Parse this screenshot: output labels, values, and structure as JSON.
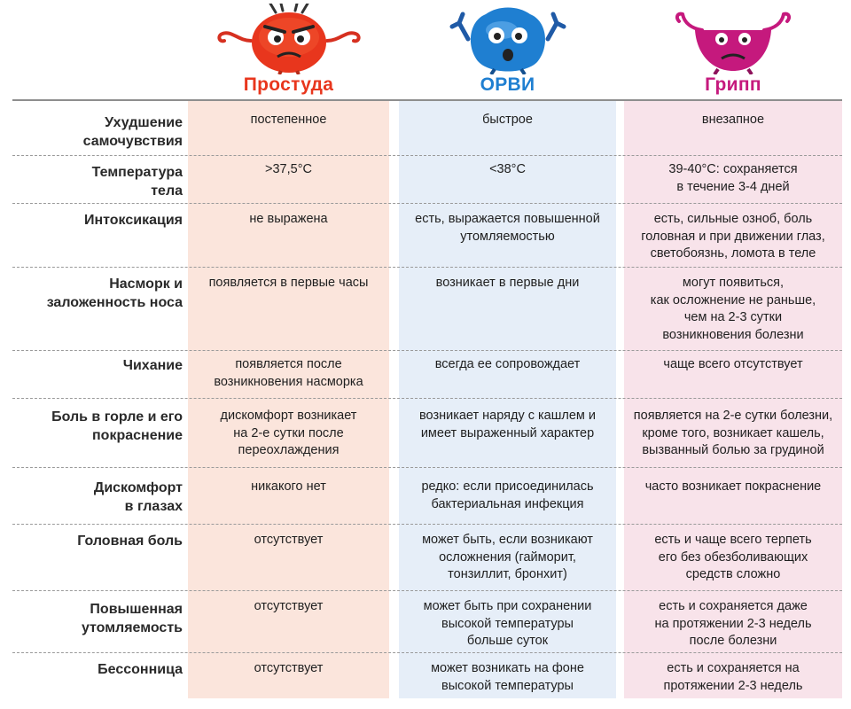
{
  "colors": {
    "cold": "#e8361d",
    "orvi": "#1f7fd1",
    "flu": "#c5197d"
  },
  "columns": [
    {
      "title": "Простуда",
      "mascot": "red-angry-virus-icon"
    },
    {
      "title": "ОРВИ",
      "mascot": "blue-virus-icon"
    },
    {
      "title": "Грипп",
      "mascot": "magenta-crab-virus-icon"
    }
  ],
  "rows": [
    {
      "label": "Ухудшение\nсамочувствия",
      "cold": "постепенное",
      "orvi": "быстрое",
      "flu": "внезапное"
    },
    {
      "label": "Температура\nтела",
      "cold": ">37,5°С",
      "orvi": "<38°С",
      "flu": "39-40°С: сохраняется\nв течение 3-4 дней"
    },
    {
      "label": "Интоксикация",
      "cold": "не выражена",
      "orvi": "есть, выражается повышенной\nутомляемостью",
      "flu": "есть, сильные озноб, боль\nголовная и при движении глаз,\nсветобоязнь, ломота в теле"
    },
    {
      "label": "Насморк и\nзаложенность носа",
      "cold": "появляется в первые часы",
      "orvi": "возникает в первые дни",
      "flu": "могут появиться,\nкак осложнение не раньше,\nчем на 2-3 сутки\nвозникновения болезни"
    },
    {
      "label": "Чихание",
      "cold": "появляется после\nвозникновения насморка",
      "orvi": "всегда ее сопровождает",
      "flu": "чаще всего отсутствует"
    },
    {
      "label": "Боль в горле и его\nпокраснение",
      "cold": "дискомфорт возникает\nна 2-е сутки после\nпереохлаждения",
      "orvi": "возникает наряду с кашлем и\nимеет выраженный характер",
      "flu": "появляется на 2-е сутки болезни,\nкроме того, возникает кашель,\nвызванный болью за грудиной"
    },
    {
      "label": "Дискомфорт\nв глазах",
      "cold": "никакого нет",
      "orvi": "редко: если присоединилась\nбактериальная инфекция",
      "flu": "часто возникает покраснение"
    },
    {
      "label": "Головная боль",
      "cold": "отсутствует",
      "orvi": "может быть, если возникают\nосложнения (гайморит,\nтонзиллит, бронхит)",
      "flu": "есть и чаще всего терпеть\nего без обезболивающих\nсредств сложно"
    },
    {
      "label": "Повышенная\nутомляемость",
      "cold": "отсутствует",
      "orvi": "может быть при сохранении\nвысокой температуры\nбольше суток",
      "flu": "есть и сохраняется даже\nна протяжении 2-3 недель\nпосле болезни"
    },
    {
      "label": "Бессонница",
      "cold": "отсутствует",
      "orvi": "может возникать на фоне\nвысокой температуры",
      "flu": "есть и сохраняется на\nпротяжении 2-3 недель"
    }
  ]
}
